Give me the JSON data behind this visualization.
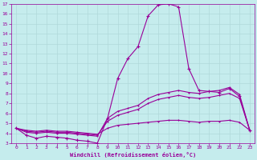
{
  "xlabel": "Windchill (Refroidissement éolien,°C)",
  "background_color": "#c5eced",
  "line_color": "#990099",
  "grid_color": "#b0d8da",
  "xlim": [
    -0.5,
    23.5
  ],
  "ylim": [
    3,
    17
  ],
  "yticks": [
    3,
    4,
    5,
    6,
    7,
    8,
    9,
    10,
    11,
    12,
    13,
    14,
    15,
    16,
    17
  ],
  "xticks": [
    0,
    1,
    2,
    3,
    4,
    5,
    6,
    7,
    8,
    9,
    10,
    11,
    12,
    13,
    14,
    15,
    16,
    17,
    18,
    19,
    20,
    21,
    22,
    23
  ],
  "line1": [
    4.5,
    3.8,
    3.5,
    3.7,
    3.6,
    3.5,
    3.3,
    3.2,
    3.0,
    5.5,
    9.5,
    11.5,
    12.7,
    15.8,
    16.9,
    17.0,
    16.7,
    10.5,
    8.3,
    8.2,
    8.1,
    8.5,
    7.7,
    4.3
  ],
  "line2": [
    4.5,
    4.1,
    4.0,
    4.1,
    4.0,
    4.0,
    3.9,
    3.8,
    3.7,
    5.5,
    6.2,
    6.5,
    6.8,
    7.5,
    7.9,
    8.1,
    8.3,
    8.1,
    8.0,
    8.2,
    8.3,
    8.6,
    7.9,
    4.3
  ],
  "line3": [
    4.5,
    4.2,
    4.1,
    4.2,
    4.1,
    4.1,
    4.0,
    3.9,
    3.8,
    5.2,
    5.8,
    6.1,
    6.4,
    7.0,
    7.4,
    7.6,
    7.8,
    7.6,
    7.5,
    7.6,
    7.8,
    8.0,
    7.5,
    4.3
  ],
  "line4": [
    4.5,
    4.3,
    4.2,
    4.3,
    4.2,
    4.2,
    4.1,
    4.0,
    3.9,
    4.5,
    4.8,
    4.9,
    5.0,
    5.1,
    5.2,
    5.3,
    5.3,
    5.2,
    5.1,
    5.2,
    5.2,
    5.3,
    5.1,
    4.3
  ]
}
